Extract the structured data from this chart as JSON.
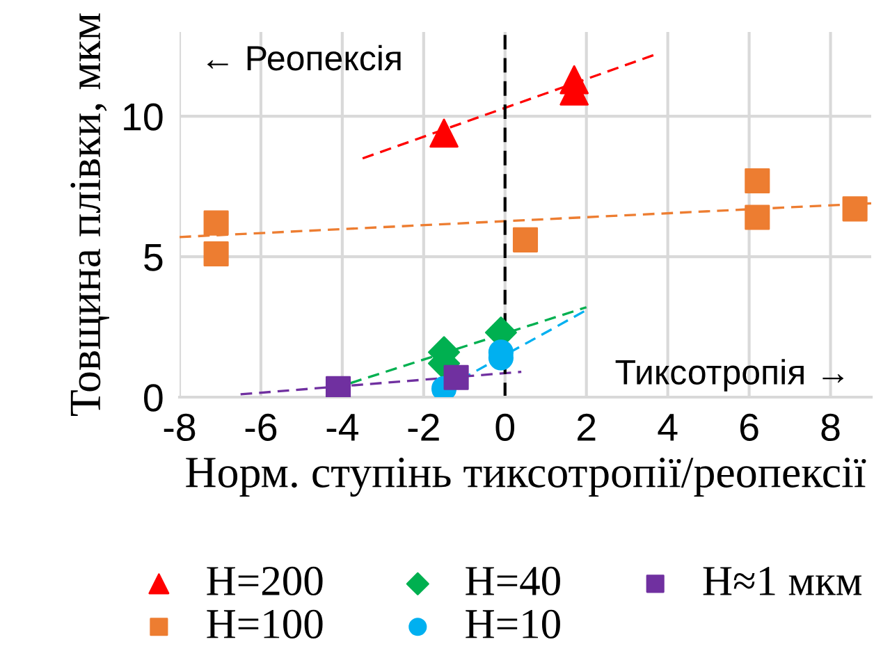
{
  "chart_data": {
    "type": "scatter",
    "xlabel": "Норм. ступінь тиксотропії/реопексії",
    "ylabel": "Товщина плівки, мкм",
    "xlim": [
      -8,
      9
    ],
    "xticks": [
      -8,
      -6,
      -4,
      -2,
      0,
      2,
      4,
      6,
      8
    ],
    "ylim": [
      0,
      13
    ],
    "yticks": [
      0,
      5,
      10
    ],
    "grid": true,
    "legend": "bottom",
    "annotations": [
      "← Реопексія",
      "Тиксотропія →"
    ],
    "ref_lines": [
      {
        "axis": "x",
        "value": 0,
        "color": "#000000",
        "line_style": "dashed"
      }
    ],
    "series": [
      {
        "name": "H=200",
        "color": "#ff0000",
        "marker": "triangle",
        "x": [
          -1.5,
          1.7,
          1.7
        ],
        "values": [
          9.4,
          11.3,
          10.9
        ]
      },
      {
        "name": "H=100",
        "color": "#ed7d31",
        "marker": "square",
        "x": [
          -7.1,
          -7.1,
          0.5,
          6.2,
          6.2,
          8.6
        ],
        "values": [
          6.2,
          5.1,
          5.6,
          7.7,
          6.4,
          6.7
        ]
      },
      {
        "name": "H=40",
        "color": "#00b050",
        "marker": "diamond",
        "x": [
          -1.5,
          -1.5,
          -0.1
        ],
        "values": [
          1.6,
          1.2,
          2.3
        ]
      },
      {
        "name": "H=10",
        "color": "#00b0f0",
        "marker": "circle",
        "x": [
          -1.5,
          -0.1,
          -0.1
        ],
        "values": [
          0.3,
          1.6,
          1.4
        ]
      },
      {
        "name": "H≈1 мкм",
        "color": "#7030a0",
        "marker": "square",
        "x": [
          -4.1,
          -1.2
        ],
        "values": [
          0.3,
          0.7
        ]
      },
      {
        "type": "line",
        "color": "#ff0000",
        "line_style": "dashed",
        "x": [
          -3.5,
          3.7
        ],
        "values": [
          8.5,
          12.2
        ]
      },
      {
        "type": "line",
        "color": "#ed7d31",
        "line_style": "dashed",
        "x": [
          -8,
          9
        ],
        "values": [
          5.7,
          6.9
        ]
      },
      {
        "type": "line",
        "color": "#00b050",
        "line_style": "dashed",
        "x": [
          -3.8,
          2
        ],
        "values": [
          0.5,
          3.2
        ]
      },
      {
        "type": "line",
        "color": "#00b0f0",
        "line_style": "dashed",
        "x": [
          -1.5,
          2
        ],
        "values": [
          0.3,
          3.1
        ]
      },
      {
        "type": "line",
        "color": "#7030a0",
        "line_style": "dashed",
        "x": [
          -6.5,
          0.4
        ],
        "values": [
          0.1,
          0.9
        ]
      }
    ]
  }
}
